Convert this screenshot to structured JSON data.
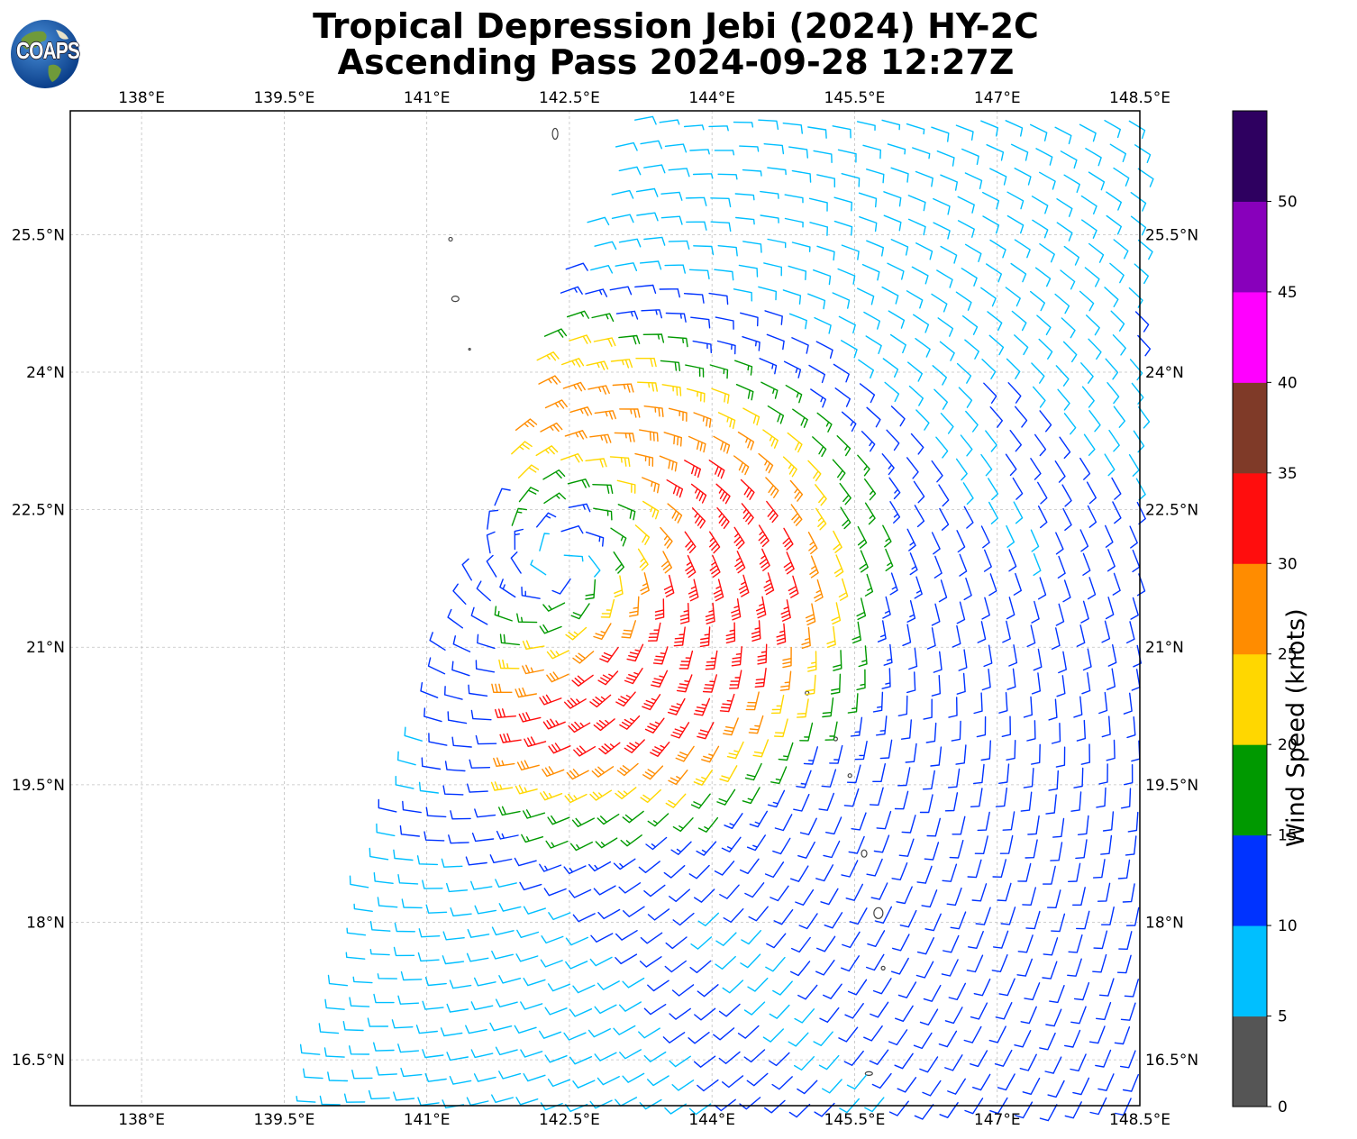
{
  "title": {
    "line1": "Tropical Depression Jebi (2024) HY-2C",
    "line2": "Ascending Pass 2024-09-28 12:27Z"
  },
  "logo": {
    "text": "COAPS",
    "icon": "globe-icon"
  },
  "map": {
    "projection": "plate-carree",
    "lon_range": [
      137.25,
      148.5
    ],
    "lat_range": [
      16.0,
      27.0
    ],
    "lon_ticks": [
      "138°E",
      "139.5°E",
      "141°E",
      "142.5°E",
      "144°E",
      "145.5°E",
      "147°E",
      "148.5°E"
    ],
    "lat_ticks": [
      "25.5°N",
      "24°N",
      "22.5°N",
      "21°N",
      "19.5°N",
      "18°N",
      "16.5°N"
    ],
    "gridlines": true,
    "storm_center_approx": {
      "lon": 142.4,
      "lat": 21.9
    },
    "swath_description": "wind barbs cover eastern portion, western edge roughly from 139.6°E at 16°N to 143°E at 26.9°N"
  },
  "colorbar": {
    "label": "Wind Speed (knots)",
    "ticks": [
      "0",
      "5",
      "10",
      "15",
      "20",
      "25",
      "30",
      "35",
      "40",
      "45",
      "50"
    ],
    "bins": [
      {
        "range": "0-5",
        "color": "#555555"
      },
      {
        "range": "5-10",
        "color": "#00bfff"
      },
      {
        "range": "10-15",
        "color": "#0033ff"
      },
      {
        "range": "15-20",
        "color": "#009900"
      },
      {
        "range": "20-25",
        "color": "#ffd700"
      },
      {
        "range": "25-30",
        "color": "#ff8c00"
      },
      {
        "range": "30-35",
        "color": "#ff0d0d"
      },
      {
        "range": "35-40",
        "color": "#7f3a28"
      },
      {
        "range": "40-45",
        "color": "#ff00ff"
      },
      {
        "range": "45-50",
        "color": "#8800bb"
      },
      {
        "range": "50-55",
        "color": "#2e0060"
      }
    ]
  }
}
